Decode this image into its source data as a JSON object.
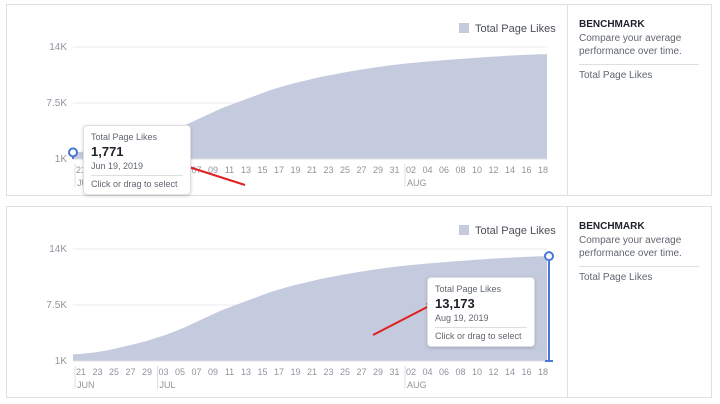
{
  "panels": [
    {
      "legend_label": "Total Page Likes",
      "sidebar": {
        "title": "BENCHMARK",
        "description": "Compare your average performance over time.",
        "item": "Total Page Likes"
      },
      "tooltip": {
        "title": "Total Page Likes",
        "value": "1,771",
        "date": "Jun 19, 2019",
        "action": "Click or drag to select"
      }
    },
    {
      "legend_label": "Total Page Likes",
      "sidebar": {
        "title": "BENCHMARK",
        "description": "Compare your average performance over time.",
        "item": "Total Page Likes"
      },
      "tooltip": {
        "title": "Total Page Likes",
        "value": "13,173",
        "date": "Aug 19, 2019",
        "action": "Click or drag to select"
      }
    }
  ],
  "colors": {
    "area": "#c5cbde",
    "marker": "#4a76d8",
    "arrow": "#e02020"
  },
  "chart_data": [
    {
      "type": "area",
      "title": "",
      "series": [
        {
          "name": "Total Page Likes",
          "values": [
            1771,
            1840,
            1950,
            2100,
            2300,
            2550,
            2800,
            3050,
            3350,
            3700,
            4050,
            4450,
            4900,
            5400,
            5900,
            6400,
            6900,
            7300,
            7700,
            8100,
            8500,
            8900,
            9250,
            9550,
            9850,
            10100,
            10350,
            10600,
            10800,
            11000,
            11200,
            11380,
            11550,
            11700,
            11850,
            11980,
            12100,
            12200,
            12300,
            12390,
            12480,
            12560,
            12640,
            12720,
            12790,
            12860,
            12930,
            13000,
            13060,
            13100,
            13140,
            13173
          ]
        }
      ],
      "x_ticks": [
        "21",
        "23",
        "25",
        "27",
        "29",
        "03",
        "05",
        "07",
        "09",
        "11",
        "13",
        "15",
        "17",
        "19",
        "21",
        "23",
        "25",
        "27",
        "29",
        "31",
        "02",
        "04",
        "06",
        "08",
        "10",
        "12",
        "14",
        "16",
        "18"
      ],
      "month_labels": [
        "JUN",
        "JUL",
        "AUG"
      ],
      "y_ticks": [
        "1K",
        "7.5K",
        "14K"
      ],
      "ylim": [
        1000,
        14000
      ],
      "legend": "top-right"
    },
    {
      "type": "area",
      "title": "",
      "series": [
        {
          "name": "Total Page Likes",
          "values": [
            1771,
            1840,
            1950,
            2100,
            2300,
            2550,
            2800,
            3050,
            3350,
            3700,
            4050,
            4450,
            4900,
            5400,
            5900,
            6400,
            6900,
            7300,
            7700,
            8100,
            8500,
            8900,
            9250,
            9550,
            9850,
            10100,
            10350,
            10600,
            10800,
            11000,
            11200,
            11380,
            11550,
            11700,
            11850,
            11980,
            12100,
            12200,
            12300,
            12390,
            12480,
            12560,
            12640,
            12720,
            12790,
            12860,
            12930,
            13000,
            13060,
            13100,
            13140,
            13173
          ]
        }
      ],
      "x_ticks": [
        "21",
        "23",
        "25",
        "27",
        "29",
        "03",
        "05",
        "07",
        "09",
        "11",
        "13",
        "15",
        "17",
        "19",
        "21",
        "23",
        "25",
        "27",
        "29",
        "31",
        "02",
        "04",
        "06",
        "08",
        "10",
        "12",
        "14",
        "16",
        "18"
      ],
      "month_labels": [
        "JUN",
        "JUL",
        "AUG"
      ],
      "y_ticks": [
        "1K",
        "7.5K",
        "14K"
      ],
      "ylim": [
        1000,
        14000
      ],
      "legend": "top-right"
    }
  ]
}
